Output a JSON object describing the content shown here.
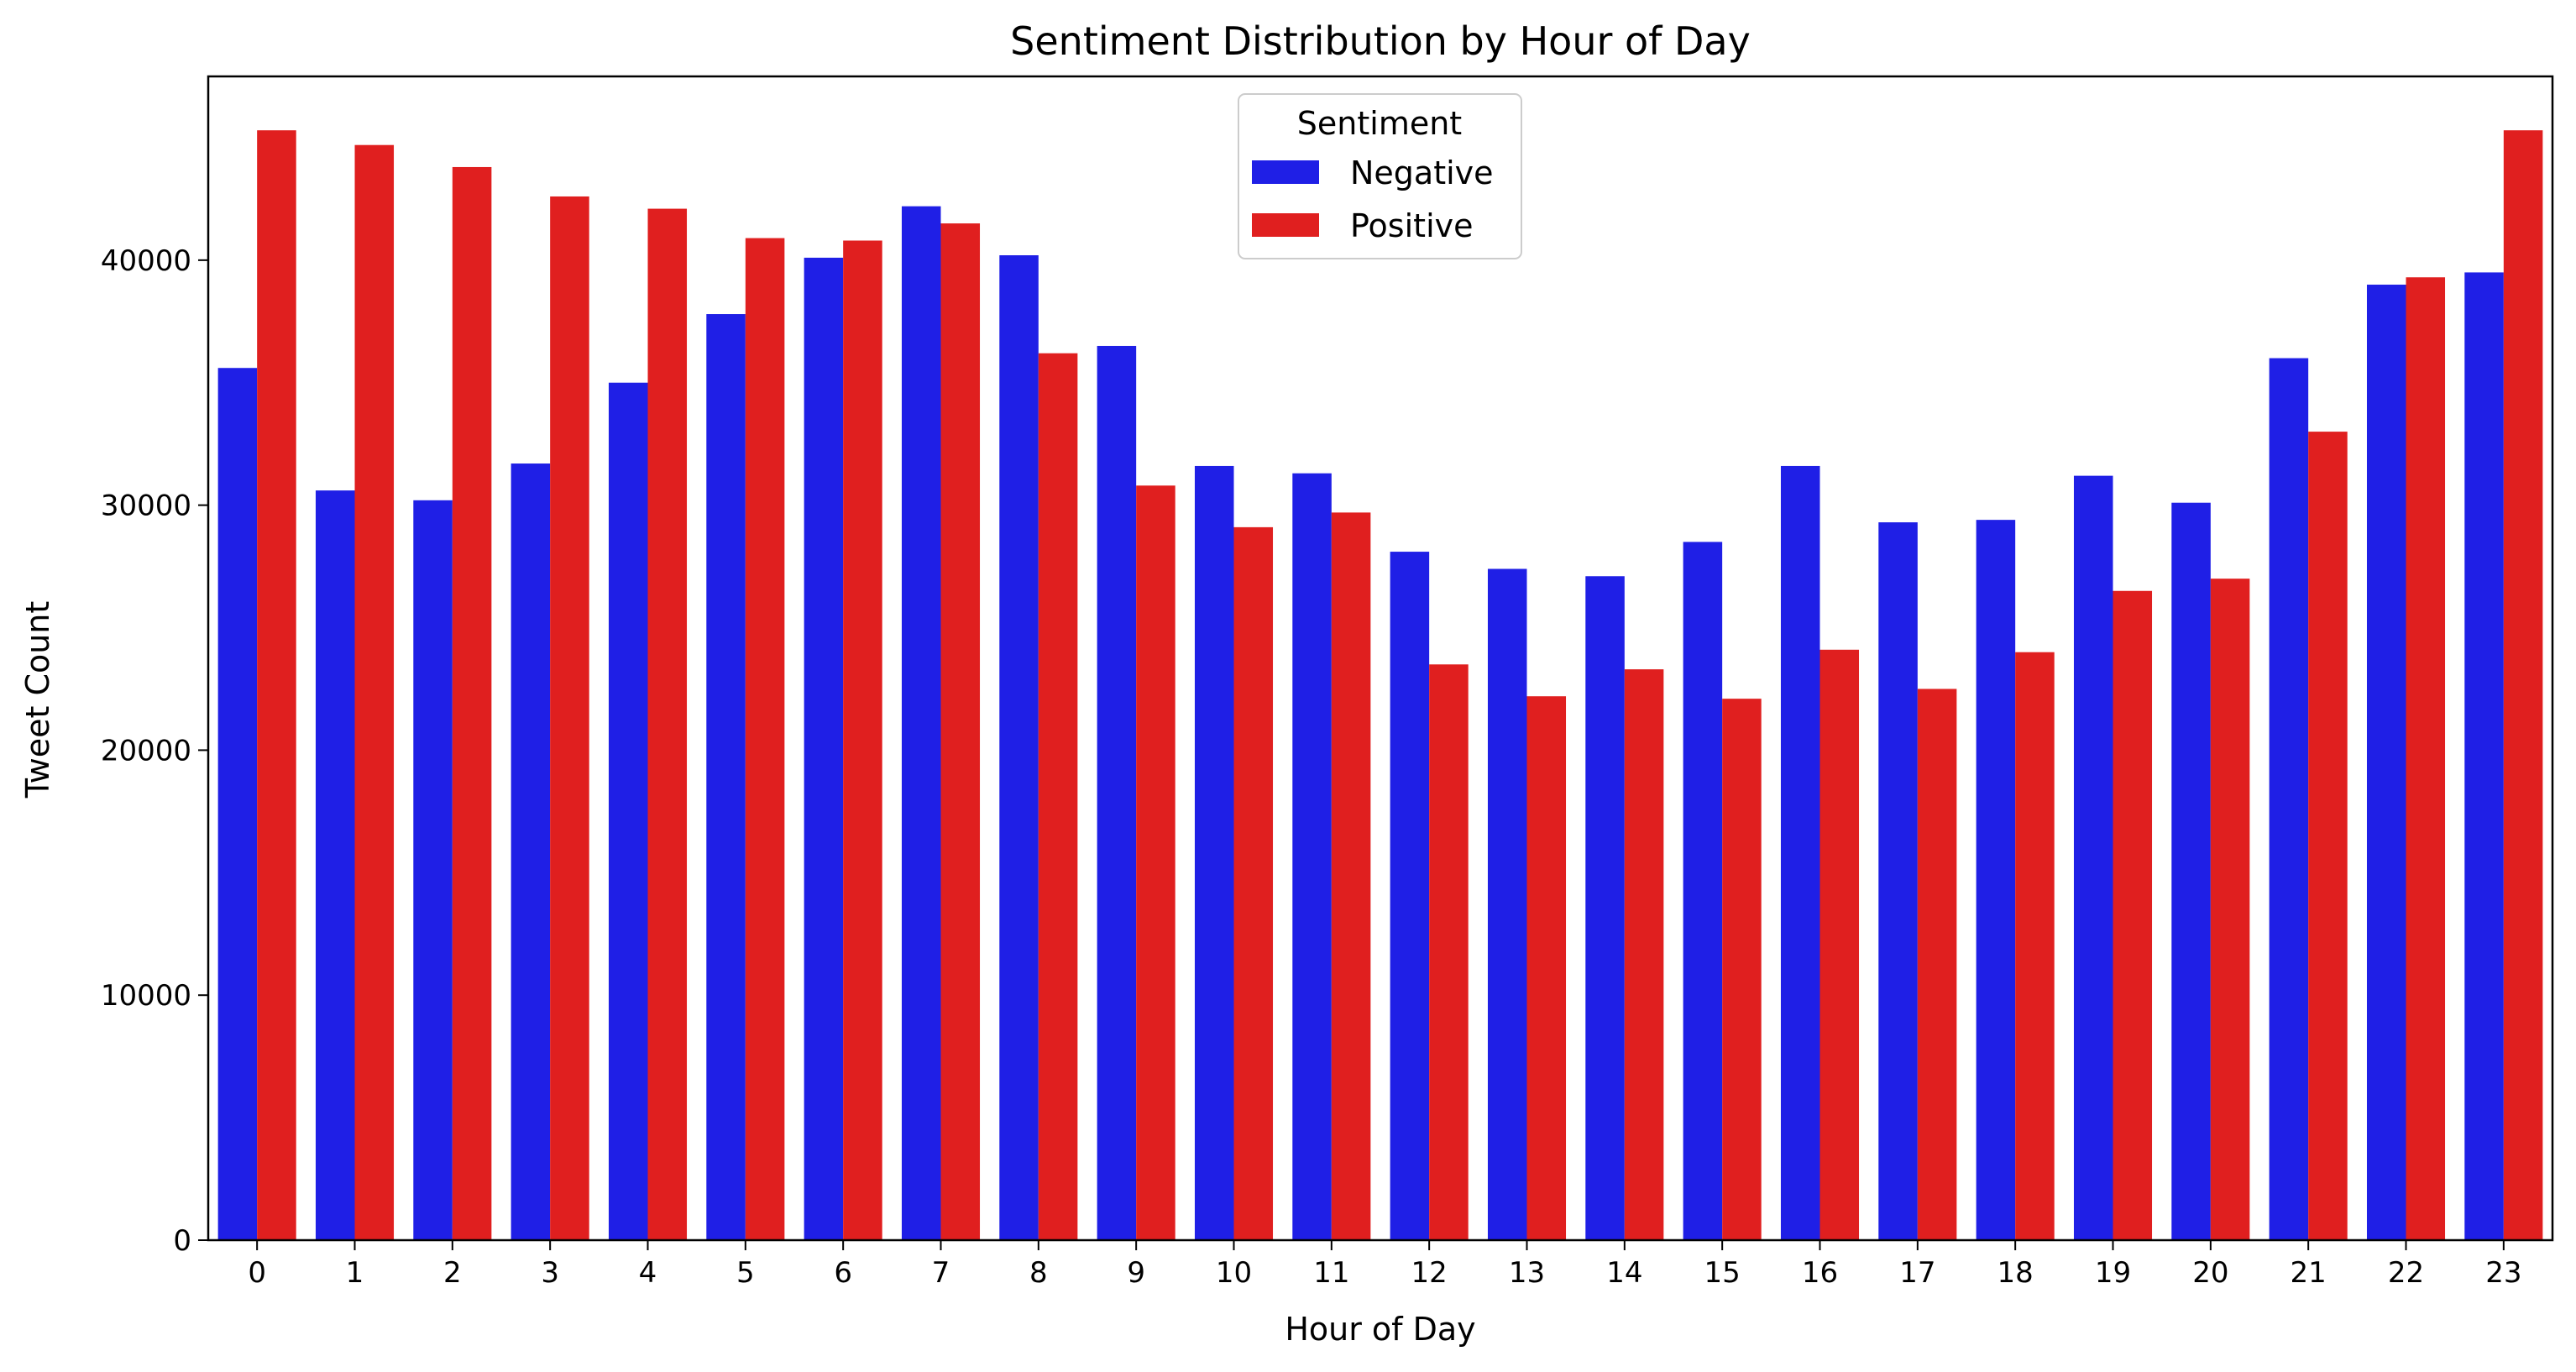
{
  "chart_data": {
    "type": "bar",
    "title": "Sentiment Distribution by Hour of Day",
    "xlabel": "Hour of Day",
    "ylabel": "Tweet Count",
    "categories": [
      "0",
      "1",
      "2",
      "3",
      "4",
      "5",
      "6",
      "7",
      "8",
      "9",
      "10",
      "11",
      "12",
      "13",
      "14",
      "15",
      "16",
      "17",
      "18",
      "19",
      "20",
      "21",
      "22",
      "23"
    ],
    "yticks": [
      "0",
      "10000",
      "20000",
      "30000",
      "40000"
    ],
    "ylim": [
      0,
      47500
    ],
    "grid": false,
    "legend": {
      "title": "Sentiment",
      "placement": "top-center"
    },
    "series": [
      {
        "name": "Negative",
        "color": "#1f1fe6",
        "values": [
          35600,
          30600,
          30200,
          31700,
          35000,
          37800,
          40100,
          42200,
          40200,
          36500,
          31600,
          31300,
          28100,
          27400,
          27100,
          28500,
          31600,
          29300,
          29400,
          31200,
          30100,
          36000,
          39000,
          39500
        ]
      },
      {
        "name": "Positive",
        "color": "#e01f1f",
        "values": [
          45300,
          44700,
          43800,
          42600,
          42100,
          40900,
          40800,
          41500,
          36200,
          30800,
          29100,
          29700,
          23500,
          22200,
          23300,
          22100,
          24100,
          22500,
          24000,
          26500,
          27000,
          33000,
          39300,
          45300
        ]
      }
    ]
  }
}
